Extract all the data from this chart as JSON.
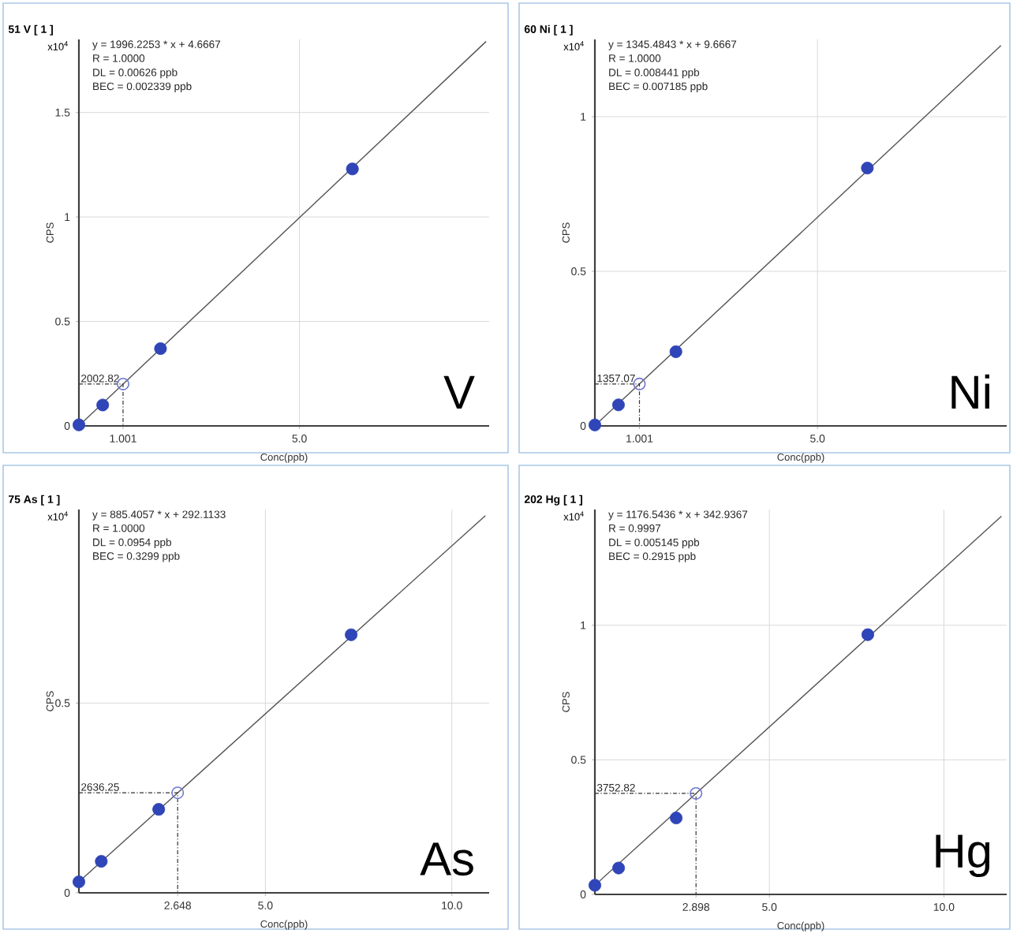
{
  "chart_data": [
    {
      "type": "scatter",
      "title": "51 V [ 1 ]",
      "xlabel": "Conc(ppb)",
      "ylabel": "CPS",
      "xlim": [
        0,
        9.3
      ],
      "ylim": [
        0,
        1.85
      ],
      "xticks": [
        {
          "value": 1.001,
          "label": "1.001"
        },
        {
          "value": 5,
          "label": "5.0"
        }
      ],
      "yticks": [
        0,
        0.5,
        1,
        1.5
      ],
      "grid": true,
      "annotations": [
        "x10$^{4}$",
        "y = 1996.2253 * x  + 4.6667",
        "R = 1.0000",
        "DL = 0.00626 ppb",
        "BEC = 0.002339 ppb",
        "2002.82",
        "V"
      ],
      "series": [
        {
          "type": "line",
          "color": "#555555",
          "marker": "none",
          "x": [
            0,
            9.23
          ],
          "values": [
            0.0005,
            1.84
          ]
        },
        {
          "color": "#2f45b8",
          "marker": "circle",
          "x": [
            0,
            0.54,
            1.85,
            6.2
          ],
          "values": [
            0.005,
            0.1,
            0.37,
            1.23
          ]
        },
        {
          "color": "#6f78d0",
          "marker": "circle",
          "line_style": "dashed",
          "x": [
            1.001
          ],
          "values": [
            0.200282
          ]
        }
      ]
    },
    {
      "type": "scatter",
      "title": "60 Ni [ 1 ]",
      "xlabel": "Conc(ppb)",
      "ylabel": "CPS",
      "xlim": [
        0,
        9.25
      ],
      "ylim": [
        0,
        1.25
      ],
      "xticks": [
        {
          "value": 1.001,
          "label": "1.001"
        },
        {
          "value": 5,
          "label": "5.0"
        }
      ],
      "yticks": [
        0,
        0.5,
        1
      ],
      "grid": true,
      "annotations": [
        "x10$^{4}$",
        "y = 1345.4843 * x  + 9.6667",
        "R = 1.0000",
        "DL = 0.008441 ppb",
        "BEC = 0.007185 ppb",
        "1357.07",
        "Ni"
      ],
      "series": [
        {
          "type": "line",
          "color": "#555555",
          "marker": "none",
          "x": [
            0,
            9.12
          ],
          "values": [
            0.001,
            1.23
          ]
        },
        {
          "color": "#2f45b8",
          "marker": "circle",
          "x": [
            0,
            0.53,
            1.82,
            6.12
          ],
          "values": [
            0.003,
            0.068,
            0.24,
            0.834
          ]
        },
        {
          "color": "#6f78d0",
          "marker": "circle",
          "line_style": "dashed",
          "x": [
            1.001
          ],
          "values": [
            0.135707
          ]
        }
      ]
    },
    {
      "type": "scatter",
      "title": "75 As [ 1 ]",
      "xlabel": "Conc(ppb)",
      "ylabel": "CPS",
      "xlim": [
        0,
        11.0
      ],
      "ylim": [
        0,
        1.01
      ],
      "xticks": [
        {
          "value": 2.648,
          "label": "2.648"
        },
        {
          "value": 5,
          "label": "5.0"
        },
        {
          "value": 10,
          "label": "10.0"
        }
      ],
      "yticks": [
        0,
        0.5
      ],
      "grid": true,
      "annotations": [
        "x10$^{4}$",
        "y = 885.4057 * x  + 292.1133",
        "R = 1.0000",
        "DL = 0.0954 ppb",
        "BEC = 0.3299 ppb",
        "2636.25",
        "As"
      ],
      "series": [
        {
          "type": "line",
          "color": "#555555",
          "marker": "none",
          "x": [
            0,
            10.9
          ],
          "values": [
            0.029,
            0.994
          ]
        },
        {
          "color": "#2f45b8",
          "marker": "circle",
          "x": [
            0,
            0.6,
            2.14,
            7.3
          ],
          "values": [
            0.029,
            0.083,
            0.22,
            0.68
          ]
        },
        {
          "color": "#6f78d0",
          "marker": "circle",
          "line_style": "dashed",
          "x": [
            2.648
          ],
          "values": [
            0.263625
          ]
        }
      ]
    },
    {
      "type": "scatter",
      "title": "202 Hg [ 1 ]",
      "xlabel": "Conc(ppb)",
      "ylabel": "CPS",
      "xlim": [
        0,
        11.8
      ],
      "ylim": [
        0,
        1.43
      ],
      "xticks": [
        {
          "value": 2.898,
          "label": "2.898"
        },
        {
          "value": 5,
          "label": "5.0"
        },
        {
          "value": 10,
          "label": "10.0"
        }
      ],
      "yticks": [
        0,
        0.5,
        1
      ],
      "grid": true,
      "annotations": [
        "x10$^{4}$",
        "y = 1176.5436 * x  + 342.9367",
        "R = 0.9997",
        "DL = 0.005145 ppb",
        "BEC = 0.2915 ppb",
        "3752.82",
        "Hg"
      ],
      "series": [
        {
          "type": "line",
          "color": "#555555",
          "marker": "none",
          "x": [
            0,
            11.65
          ],
          "values": [
            0.034,
            1.405
          ]
        },
        {
          "color": "#2f45b8",
          "marker": "circle",
          "x": [
            0,
            0.68,
            2.33,
            7.82
          ],
          "values": [
            0.034,
            0.098,
            0.284,
            0.965
          ]
        },
        {
          "color": "#6f78d0",
          "marker": "circle",
          "line_style": "dashed",
          "x": [
            2.898
          ],
          "values": [
            0.375282
          ]
        }
      ]
    }
  ]
}
